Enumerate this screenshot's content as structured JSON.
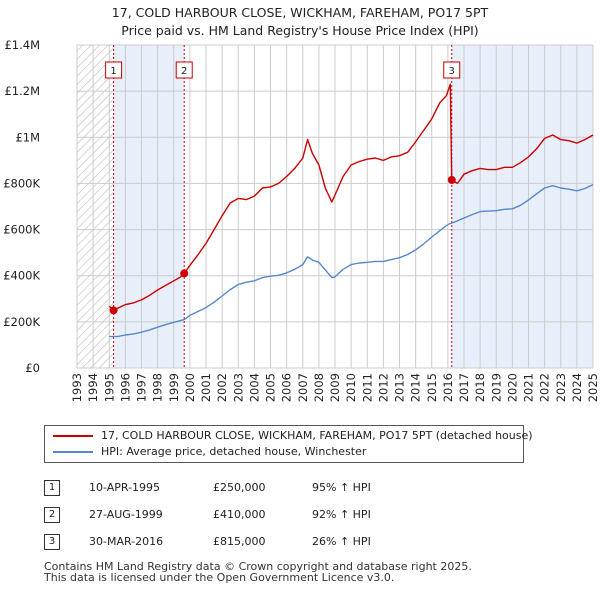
{
  "title_line1": "17, COLD HARBOUR CLOSE, WICKHAM, FAREHAM, PO17 5PT",
  "title_line2": "Price paid vs. HM Land Registry's House Price Index (HPI)",
  "colors": {
    "property": "#cc0000",
    "hpi": "#5588cc",
    "shade": "#e8eefa",
    "grid": "#cccccc",
    "marker": "#cc0000"
  },
  "chart_data": {
    "type": "line",
    "title": "Price paid vs. HM Land Registry's House Price Index (HPI)",
    "xlim": [
      1993,
      2025
    ],
    "ylim": [
      0,
      1400000
    ],
    "x_ticks": [
      "1993",
      "1994",
      "1995",
      "1996",
      "1997",
      "1998",
      "1999",
      "2000",
      "2001",
      "2002",
      "2003",
      "2004",
      "2005",
      "2006",
      "2007",
      "2008",
      "2009",
      "2010",
      "2011",
      "2012",
      "2013",
      "2014",
      "2015",
      "2016",
      "2017",
      "2018",
      "2019",
      "2020",
      "2021",
      "2022",
      "2023",
      "2024",
      "2025"
    ],
    "y_ticks": [
      {
        "value": 0,
        "label": "£0"
      },
      {
        "value": 200000,
        "label": "£200K"
      },
      {
        "value": 400000,
        "label": "£400K"
      },
      {
        "value": 600000,
        "label": "£600K"
      },
      {
        "value": 800000,
        "label": "£800K"
      },
      {
        "value": 1000000,
        "label": "£1M"
      },
      {
        "value": 1200000,
        "label": "£1.2M"
      },
      {
        "value": 1400000,
        "label": "£1.4M"
      }
    ],
    "hatch_until": 1995.27,
    "shaded_periods": [
      [
        1995.27,
        1999.65
      ],
      [
        2016.24,
        2025
      ]
    ],
    "series": [
      {
        "name": "17, COLD HARBOUR CLOSE, WICKHAM, FAREHAM, PO17 5PT (detached house)",
        "color": "#cc0000",
        "points": [
          [
            1995.0,
            268000
          ],
          [
            1995.27,
            250000
          ],
          [
            1995.6,
            262000
          ],
          [
            1996,
            275000
          ],
          [
            1996.5,
            282000
          ],
          [
            1997,
            295000
          ],
          [
            1997.5,
            315000
          ],
          [
            1998,
            338000
          ],
          [
            1998.5,
            358000
          ],
          [
            1999,
            378000
          ],
          [
            1999.4,
            393000
          ],
          [
            1999.65,
            410000
          ],
          [
            2000,
            445000
          ],
          [
            2000.5,
            490000
          ],
          [
            2001,
            540000
          ],
          [
            2001.5,
            600000
          ],
          [
            2002,
            660000
          ],
          [
            2002.5,
            715000
          ],
          [
            2003,
            735000
          ],
          [
            2003.5,
            730000
          ],
          [
            2004,
            745000
          ],
          [
            2004.5,
            780000
          ],
          [
            2005,
            785000
          ],
          [
            2005.5,
            800000
          ],
          [
            2006,
            830000
          ],
          [
            2006.5,
            865000
          ],
          [
            2007,
            910000
          ],
          [
            2007.3,
            990000
          ],
          [
            2007.6,
            930000
          ],
          [
            2008,
            880000
          ],
          [
            2008.4,
            780000
          ],
          [
            2008.8,
            720000
          ],
          [
            2009,
            750000
          ],
          [
            2009.5,
            830000
          ],
          [
            2010,
            880000
          ],
          [
            2010.5,
            895000
          ],
          [
            2011,
            905000
          ],
          [
            2011.5,
            910000
          ],
          [
            2012,
            900000
          ],
          [
            2012.5,
            915000
          ],
          [
            2013,
            920000
          ],
          [
            2013.5,
            935000
          ],
          [
            2014,
            980000
          ],
          [
            2014.5,
            1030000
          ],
          [
            2015,
            1080000
          ],
          [
            2015.5,
            1150000
          ],
          [
            2015.9,
            1180000
          ],
          [
            2016.15,
            1230000
          ],
          [
            2016.24,
            815000
          ],
          [
            2016.6,
            800000
          ],
          [
            2017,
            840000
          ],
          [
            2017.5,
            855000
          ],
          [
            2018,
            865000
          ],
          [
            2018.5,
            860000
          ],
          [
            2019,
            860000
          ],
          [
            2019.5,
            870000
          ],
          [
            2020,
            870000
          ],
          [
            2020.5,
            890000
          ],
          [
            2021,
            915000
          ],
          [
            2021.5,
            950000
          ],
          [
            2022,
            995000
          ],
          [
            2022.5,
            1010000
          ],
          [
            2023,
            990000
          ],
          [
            2023.5,
            985000
          ],
          [
            2024,
            975000
          ],
          [
            2024.5,
            990000
          ],
          [
            2025,
            1010000
          ]
        ]
      },
      {
        "name": "HPI: Average price, detached house, Winchester",
        "color": "#5588cc",
        "points": [
          [
            1995.0,
            137000
          ],
          [
            1995.5,
            136000
          ],
          [
            1996,
            143000
          ],
          [
            1996.5,
            148000
          ],
          [
            1997,
            155000
          ],
          [
            1997.5,
            165000
          ],
          [
            1998,
            177000
          ],
          [
            1998.5,
            188000
          ],
          [
            1999,
            198000
          ],
          [
            1999.65,
            210000
          ],
          [
            2000,
            228000
          ],
          [
            2000.5,
            245000
          ],
          [
            2001,
            262000
          ],
          [
            2001.5,
            285000
          ],
          [
            2002,
            312000
          ],
          [
            2002.5,
            340000
          ],
          [
            2003,
            362000
          ],
          [
            2003.5,
            372000
          ],
          [
            2004,
            378000
          ],
          [
            2004.5,
            392000
          ],
          [
            2005,
            398000
          ],
          [
            2005.5,
            402000
          ],
          [
            2006,
            412000
          ],
          [
            2006.5,
            428000
          ],
          [
            2007,
            448000
          ],
          [
            2007.3,
            482000
          ],
          [
            2007.6,
            468000
          ],
          [
            2008,
            458000
          ],
          [
            2008.4,
            425000
          ],
          [
            2008.8,
            392000
          ],
          [
            2009,
            395000
          ],
          [
            2009.5,
            428000
          ],
          [
            2010,
            448000
          ],
          [
            2010.5,
            455000
          ],
          [
            2011,
            458000
          ],
          [
            2011.5,
            462000
          ],
          [
            2012,
            462000
          ],
          [
            2012.5,
            470000
          ],
          [
            2013,
            478000
          ],
          [
            2013.5,
            492000
          ],
          [
            2014,
            512000
          ],
          [
            2014.5,
            538000
          ],
          [
            2015,
            568000
          ],
          [
            2015.5,
            595000
          ],
          [
            2016,
            622000
          ],
          [
            2016.5,
            635000
          ],
          [
            2017,
            650000
          ],
          [
            2017.5,
            665000
          ],
          [
            2018,
            678000
          ],
          [
            2018.5,
            680000
          ],
          [
            2019,
            682000
          ],
          [
            2019.5,
            688000
          ],
          [
            2020,
            690000
          ],
          [
            2020.5,
            705000
          ],
          [
            2021,
            728000
          ],
          [
            2021.5,
            755000
          ],
          [
            2022,
            780000
          ],
          [
            2022.5,
            790000
          ],
          [
            2023,
            780000
          ],
          [
            2023.5,
            775000
          ],
          [
            2024,
            768000
          ],
          [
            2024.5,
            778000
          ],
          [
            2025,
            795000
          ]
        ]
      }
    ],
    "sales": [
      {
        "num": "1",
        "x": 1995.27,
        "y": 250000
      },
      {
        "num": "2",
        "x": 1999.65,
        "y": 410000
      },
      {
        "num": "3",
        "x": 2016.24,
        "y": 815000
      }
    ]
  },
  "legend": {
    "property_label": "17, COLD HARBOUR CLOSE, WICKHAM, FAREHAM, PO17 5PT (detached house)",
    "hpi_label": "HPI: Average price, detached house, Winchester"
  },
  "sales_table": [
    {
      "num": "1",
      "date": "10-APR-1995",
      "price": "£250,000",
      "hpi": "95% ↑ HPI"
    },
    {
      "num": "2",
      "date": "27-AUG-1999",
      "price": "£410,000",
      "hpi": "92% ↑ HPI"
    },
    {
      "num": "3",
      "date": "30-MAR-2016",
      "price": "£815,000",
      "hpi": "26% ↑ HPI"
    }
  ],
  "footer": {
    "line1": "Contains HM Land Registry data © Crown copyright and database right 2025.",
    "line2": "This data is licensed under the Open Government Licence v3.0."
  }
}
